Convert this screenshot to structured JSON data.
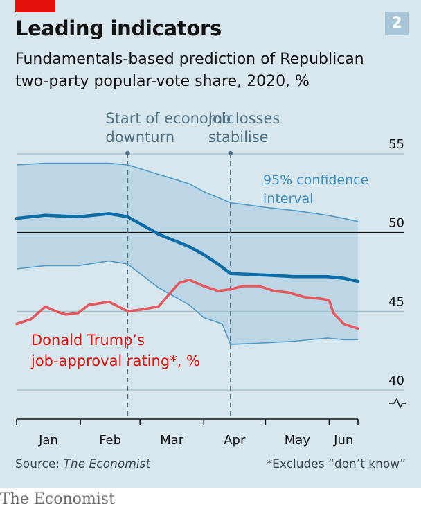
{
  "header": {
    "title": "Leading indicators",
    "subtitle": "Fundamentals-based prediction of Republican two-party popular-vote share, 2020, %",
    "badge": "2",
    "accent_color": "#e3120b"
  },
  "footer": {
    "source_prefix": "Source: ",
    "source_name": "The Economist",
    "footnote": "*Excludes “don’t know”",
    "brand": "The Economist"
  },
  "chart_data": {
    "type": "line",
    "ylim": [
      38.5,
      56
    ],
    "yticks": [
      "55",
      "50",
      "45",
      "40"
    ],
    "axis_break": true,
    "grid": true,
    "months": [
      "Jan",
      "Feb",
      "Mar",
      "Apr",
      "May",
      "Jun"
    ],
    "annotations": [
      {
        "text": "Start of economic downturn",
        "lines": [
          "Start of economic",
          "downturn"
        ],
        "date": "Feb 24"
      },
      {
        "text": "Job losses stabilise",
        "lines": [
          "Job losses",
          "stabilise"
        ],
        "date": "Apr 14"
      }
    ],
    "ci_label": [
      "95% confidence",
      "interval"
    ],
    "series": [
      {
        "name": "Republican two-party popular-vote share",
        "color": "#0d6ba6",
        "x": [
          "Jan 1",
          "Jan 15",
          "Jan 31",
          "Feb 15",
          "Feb 24",
          "Mar 10",
          "Mar 25",
          "Apr 1",
          "Apr 8",
          "Apr 14",
          "May 1",
          "May 15",
          "May 31",
          "Jun 8",
          "Jun 15"
        ],
        "values": [
          50.9,
          51.1,
          51.0,
          51.2,
          51.0,
          49.9,
          49.1,
          48.6,
          48.0,
          47.4,
          47.3,
          47.2,
          47.2,
          47.1,
          46.9
        ]
      },
      {
        "name": "95% confidence interval upper",
        "color": "#4e9bc9",
        "x": [
          "Jan 1",
          "Jan 15",
          "Jan 31",
          "Feb 15",
          "Feb 24",
          "Mar 10",
          "Mar 25",
          "Apr 1",
          "Apr 14",
          "May 1",
          "May 15",
          "May 31",
          "Jun 8",
          "Jun 15"
        ],
        "values": [
          54.3,
          54.4,
          54.4,
          54.4,
          54.3,
          53.7,
          53.1,
          52.6,
          51.9,
          51.6,
          51.4,
          51.1,
          50.9,
          50.7
        ]
      },
      {
        "name": "95% confidence interval lower",
        "color": "#4e9bc9",
        "x": [
          "Jan 1",
          "Jan 15",
          "Jan 31",
          "Feb 15",
          "Feb 24",
          "Mar 10",
          "Mar 25",
          "Apr 1",
          "Apr 10",
          "Apr 14",
          "May 1",
          "May 15",
          "May 31",
          "Jun 8",
          "Jun 15"
        ],
        "values": [
          47.7,
          47.9,
          47.9,
          48.2,
          48.0,
          46.5,
          45.4,
          44.6,
          44.2,
          42.9,
          43.0,
          43.1,
          43.3,
          43.2,
          43.2
        ]
      },
      {
        "name": "Donald Trump’s job-approval rating*, %",
        "label_lines": [
          "Donald Trump’s",
          "job-approval rating*, %"
        ],
        "color": "#e3585d",
        "x": [
          "Jan 1",
          "Jan 8",
          "Jan 15",
          "Jan 20",
          "Jan 25",
          "Jan 31",
          "Feb 5",
          "Feb 15",
          "Feb 24",
          "Mar 1",
          "Mar 10",
          "Mar 20",
          "Mar 25",
          "Apr 1",
          "Apr 8",
          "Apr 14",
          "Apr 20",
          "Apr 28",
          "May 5",
          "May 12",
          "May 20",
          "May 28",
          "Jun 1",
          "Jun 3",
          "Jun 8",
          "Jun 15"
        ],
        "values": [
          44.2,
          44.5,
          45.3,
          45.0,
          44.8,
          44.9,
          45.4,
          45.6,
          45.0,
          45.1,
          45.3,
          46.8,
          47.0,
          46.6,
          46.3,
          46.4,
          46.6,
          46.6,
          46.3,
          46.2,
          45.9,
          45.8,
          45.7,
          44.9,
          44.2,
          43.9
        ]
      }
    ]
  }
}
